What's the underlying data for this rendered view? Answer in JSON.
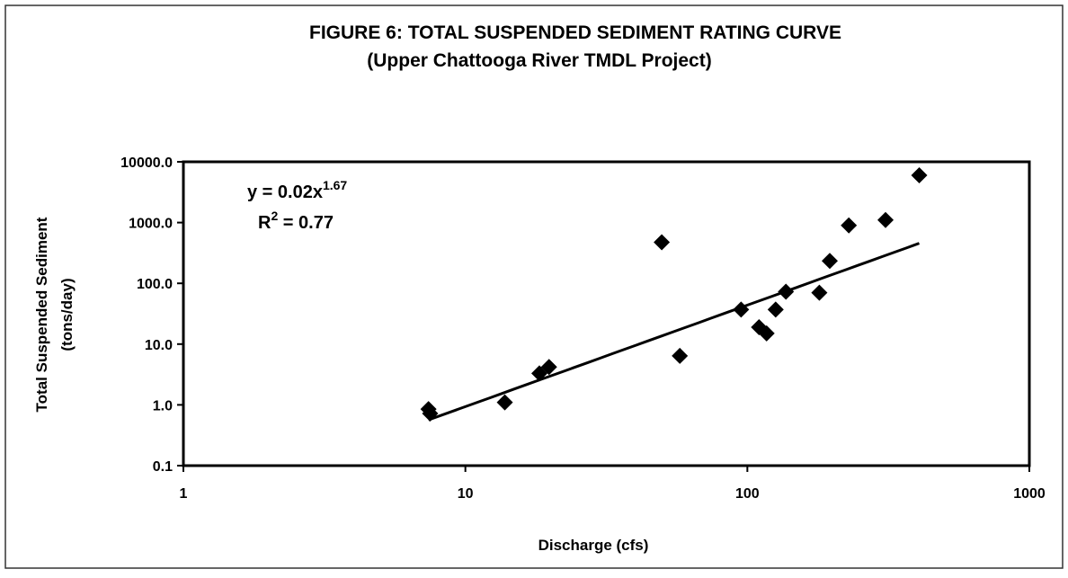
{
  "chart_data": {
    "type": "scatter",
    "title": "FIGURE 6: TOTAL SUSPENDED SEDIMENT RATING CURVE",
    "subtitle": "(Upper Chattooga River TMDL Project)",
    "xlabel": "Discharge (cfs)",
    "ylabel": "Total Suspended Sediment",
    "ylabel_unit": "(tons/day)",
    "xscale": "log",
    "yscale": "log",
    "xlim": [
      1,
      1000
    ],
    "ylim": [
      0.1,
      10000
    ],
    "xticks": [
      1,
      10,
      100,
      1000
    ],
    "yticks": [
      {
        "value": 0.1,
        "label": "0.1"
      },
      {
        "value": 1,
        "label": "1.0"
      },
      {
        "value": 10,
        "label": "10.0"
      },
      {
        "value": 100,
        "label": "100.0"
      },
      {
        "value": 1000,
        "label": "1000.0"
      },
      {
        "value": 10000,
        "label": "10000.0"
      }
    ],
    "color": "#000000",
    "x": [
      7.4,
      7.5,
      13.8,
      18.3,
      19.8,
      49.7,
      57.6,
      95,
      110,
      117,
      126,
      137,
      180,
      196,
      229,
      309,
      407
    ],
    "values": [
      0.85,
      0.72,
      1.1,
      3.3,
      4.2,
      475,
      6.4,
      37,
      19,
      15,
      37,
      73,
      70,
      234,
      900,
      1100,
      6000
    ],
    "trendline": {
      "coefficient": 0.02,
      "exponent": 1.67
    },
    "equation": {
      "base": "y = 0.02x",
      "exponent": "1.67"
    },
    "r_squared": {
      "base": "R",
      "exponent": "2",
      "rest": " = 0.77"
    }
  }
}
